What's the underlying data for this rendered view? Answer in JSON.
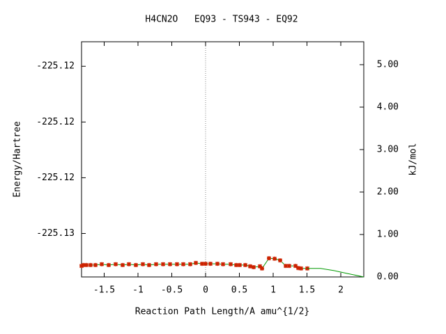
{
  "chart_data": {
    "type": "line",
    "title": "H4CN2O   EQ93 - TS943 - EQ92",
    "x_label": "Reaction Path Length/A amu^{1/2}",
    "y_label": "Energy/Hartree",
    "y2_label": "kJ/mol",
    "xlim": [
      -1.835,
      2.34
    ],
    "xticks": [
      -1.5,
      -1,
      -0.5,
      0,
      0.5,
      1,
      1.5,
      2
    ],
    "ylim": [
      -225.12579,
      -225.12368
    ],
    "yticks": [
      {
        "value": -225.1239,
        "label": "-225.12"
      },
      {
        "value": -225.1244,
        "label": "-225.12"
      },
      {
        "value": -225.1249,
        "label": "-225.12"
      },
      {
        "value": -225.1254,
        "label": "-225.13"
      }
    ],
    "y2lim": [
      0,
      5.54
    ],
    "y2ticks": [
      {
        "value": 0,
        "label": "0.00"
      },
      {
        "value": 1,
        "label": "1.00"
      },
      {
        "value": 2,
        "label": "2.00"
      },
      {
        "value": 3,
        "label": "3.00"
      },
      {
        "value": 4,
        "label": "4.00"
      },
      {
        "value": 5,
        "label": "5.00"
      }
    ],
    "series": [
      {
        "color": "#009900",
        "marker_color": "#cc2200",
        "axis": "y2",
        "x": [
          -1.835,
          -1.804,
          -1.763,
          -1.701,
          -1.629,
          -1.536,
          -1.433,
          -1.33,
          -1.227,
          -1.134,
          -1.031,
          -0.928,
          -0.835,
          -0.732,
          -0.629,
          -0.526,
          -0.423,
          -0.33,
          -0.227,
          -0.144,
          -0.052,
          0,
          0.072,
          0.175,
          0.258,
          0.371,
          0.454,
          0.505,
          0.588,
          0.66,
          0.711,
          0.804,
          0.835,
          0.938,
          1.021,
          1.103,
          1.186,
          1.237,
          1.33,
          1.371,
          1.412,
          1.505
        ],
        "values": [
          0.26,
          0.28,
          0.28,
          0.28,
          0.28,
          0.3,
          0.28,
          0.3,
          0.28,
          0.3,
          0.28,
          0.3,
          0.28,
          0.3,
          0.3,
          0.3,
          0.3,
          0.3,
          0.3,
          0.33,
          0.31,
          0.31,
          0.31,
          0.31,
          0.3,
          0.3,
          0.28,
          0.28,
          0.28,
          0.25,
          0.23,
          0.25,
          0.2,
          0.44,
          0.43,
          0.39,
          0.26,
          0.26,
          0.26,
          0.21,
          0.2,
          0.2
        ]
      },
      {
        "color": "#009900",
        "axis": "y2",
        "x": [
          1.505,
          1.7,
          1.9,
          2.1,
          2.34
        ],
        "values": [
          0.2,
          0.2,
          0.15,
          0.08,
          0
        ]
      }
    ]
  }
}
